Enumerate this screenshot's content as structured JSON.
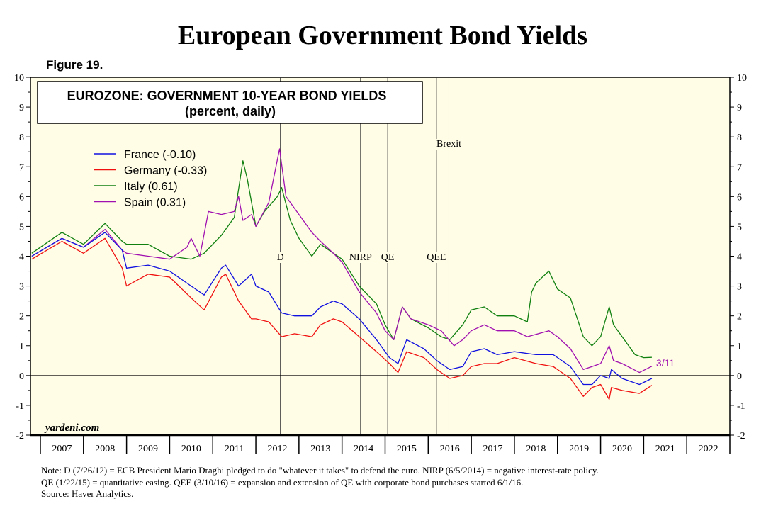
{
  "title": "European Government Bond Yields",
  "figure_label": "Figure 19.",
  "watermark": "yardeni.com",
  "notes": [
    "Note: D (7/26/12) = ECB President Mario Draghi pledged to do \"whatever it takes\" to defend the euro. NIRP (6/5/2014) = negative interest-rate policy.",
    "QE (1/22/15) = quantitative easing. QEE (3/10/16) = expansion and extension of QE with corporate bond purchases started 6/1/16.",
    "Source: Haver Analytics."
  ],
  "chart_data": {
    "type": "line",
    "title": "EUROZONE: GOVERNMENT 10-YEAR BOND YIELDS",
    "subtitle": "(percent, daily)",
    "xlim": [
      2006.77,
      2023.0
    ],
    "ylim": [
      -2,
      10
    ],
    "y_ticks": [
      "-2",
      "-1",
      "0",
      "1",
      "2",
      "3",
      "4",
      "5",
      "6",
      "7",
      "8",
      "9",
      "10"
    ],
    "x_tick_labels": [
      "2007",
      "2008",
      "2009",
      "2010",
      "2011",
      "2012",
      "2013",
      "2014",
      "2015",
      "2016",
      "2017",
      "2018",
      "2019",
      "2020",
      "2021",
      "2022"
    ],
    "grid": false,
    "background": "#fffde6",
    "legend_placement": "top-left",
    "end_label": "3/11",
    "events": [
      {
        "label": "D",
        "x": 2012.57
      },
      {
        "label": "NIRP",
        "x": 2014.43
      },
      {
        "label": "QE",
        "x": 2015.06
      },
      {
        "label": "QEE",
        "x": 2016.19
      },
      {
        "label": "Brexit",
        "x": 2016.48
      }
    ],
    "series": [
      {
        "name": "France (-0.10)",
        "color": "#1010e0",
        "x": [
          2006.8,
          2007.5,
          2008.0,
          2008.5,
          2008.9,
          2009.0,
          2009.5,
          2010.0,
          2010.5,
          2010.8,
          2011.2,
          2011.3,
          2011.6,
          2011.9,
          2012.0,
          2012.3,
          2012.6,
          2012.9,
          2013.3,
          2013.5,
          2013.8,
          2014.0,
          2014.4,
          2014.8,
          2015.1,
          2015.3,
          2015.5,
          2015.9,
          2016.2,
          2016.5,
          2016.8,
          2017.0,
          2017.3,
          2017.6,
          2018.0,
          2018.5,
          2018.9,
          2019.3,
          2019.6,
          2019.8,
          2020.0,
          2020.2,
          2020.25,
          2020.5,
          2020.9,
          2021.19
        ],
        "y": [
          4.0,
          4.6,
          4.3,
          4.8,
          4.2,
          3.6,
          3.7,
          3.5,
          3.0,
          2.7,
          3.6,
          3.7,
          3.0,
          3.4,
          3.0,
          2.8,
          2.1,
          2.0,
          2.0,
          2.3,
          2.5,
          2.4,
          1.9,
          1.2,
          0.6,
          0.4,
          1.2,
          0.9,
          0.5,
          0.2,
          0.3,
          0.8,
          0.9,
          0.7,
          0.8,
          0.7,
          0.7,
          0.3,
          -0.3,
          -0.3,
          0.0,
          -0.1,
          0.2,
          -0.1,
          -0.3,
          -0.1
        ]
      },
      {
        "name": "Germany (-0.33)",
        "color": "#f01010",
        "x": [
          2006.8,
          2007.5,
          2008.0,
          2008.5,
          2008.9,
          2009.0,
          2009.5,
          2010.0,
          2010.5,
          2010.8,
          2011.2,
          2011.3,
          2011.6,
          2011.9,
          2012.0,
          2012.3,
          2012.6,
          2012.9,
          2013.3,
          2013.5,
          2013.8,
          2014.0,
          2014.4,
          2014.8,
          2015.1,
          2015.3,
          2015.5,
          2015.9,
          2016.2,
          2016.5,
          2016.8,
          2017.0,
          2017.3,
          2017.6,
          2018.0,
          2018.5,
          2018.9,
          2019.3,
          2019.6,
          2019.8,
          2020.0,
          2020.2,
          2020.25,
          2020.5,
          2020.9,
          2021.19
        ],
        "y": [
          3.9,
          4.5,
          4.1,
          4.6,
          3.6,
          3.0,
          3.4,
          3.3,
          2.6,
          2.2,
          3.3,
          3.4,
          2.5,
          1.9,
          1.9,
          1.8,
          1.3,
          1.4,
          1.3,
          1.7,
          1.9,
          1.8,
          1.3,
          0.8,
          0.4,
          0.1,
          0.8,
          0.6,
          0.2,
          -0.1,
          0.0,
          0.3,
          0.4,
          0.4,
          0.6,
          0.4,
          0.3,
          -0.1,
          -0.7,
          -0.4,
          -0.3,
          -0.8,
          -0.4,
          -0.5,
          -0.6,
          -0.33
        ]
      },
      {
        "name": "Italy (0.61)",
        "color": "#108010",
        "x": [
          2006.8,
          2007.5,
          2008.0,
          2008.5,
          2008.9,
          2009.0,
          2009.5,
          2010.0,
          2010.5,
          2010.8,
          2011.2,
          2011.5,
          2011.7,
          2011.8,
          2012.0,
          2012.2,
          2012.5,
          2012.6,
          2012.8,
          2013.0,
          2013.3,
          2013.5,
          2013.8,
          2014.0,
          2014.4,
          2014.8,
          2015.0,
          2015.2,
          2015.4,
          2015.6,
          2016.0,
          2016.3,
          2016.5,
          2016.8,
          2017.0,
          2017.3,
          2017.6,
          2018.0,
          2018.3,
          2018.4,
          2018.5,
          2018.8,
          2019.0,
          2019.3,
          2019.6,
          2019.8,
          2020.0,
          2020.2,
          2020.3,
          2020.5,
          2020.8,
          2021.0,
          2021.19
        ],
        "y": [
          4.1,
          4.8,
          4.4,
          5.1,
          4.5,
          4.4,
          4.4,
          4.0,
          3.9,
          4.1,
          4.7,
          5.3,
          7.2,
          6.6,
          5.0,
          5.5,
          6.0,
          6.3,
          5.2,
          4.6,
          4.0,
          4.4,
          4.1,
          3.9,
          3.0,
          2.4,
          1.7,
          1.2,
          2.3,
          1.9,
          1.6,
          1.3,
          1.2,
          1.7,
          2.2,
          2.3,
          2.0,
          2.0,
          1.8,
          2.8,
          3.1,
          3.5,
          2.9,
          2.6,
          1.3,
          1.0,
          1.3,
          2.3,
          1.7,
          1.3,
          0.7,
          0.6,
          0.61
        ]
      },
      {
        "name": "Spain (0.31)",
        "color": "#a010b0",
        "x": [
          2006.8,
          2007.5,
          2008.0,
          2008.5,
          2008.9,
          2009.0,
          2009.5,
          2010.0,
          2010.4,
          2010.5,
          2010.7,
          2010.9,
          2011.2,
          2011.5,
          2011.6,
          2011.7,
          2011.9,
          2012.0,
          2012.3,
          2012.55,
          2012.7,
          2012.9,
          2013.3,
          2013.5,
          2013.8,
          2014.0,
          2014.4,
          2014.8,
          2015.0,
          2015.2,
          2015.4,
          2015.6,
          2016.0,
          2016.3,
          2016.6,
          2016.8,
          2017.0,
          2017.3,
          2017.6,
          2018.0,
          2018.3,
          2018.8,
          2019.0,
          2019.3,
          2019.6,
          2019.8,
          2020.0,
          2020.2,
          2020.3,
          2020.5,
          2020.9,
          2021.19
        ],
        "y": [
          4.0,
          4.6,
          4.3,
          4.9,
          4.2,
          4.1,
          4.0,
          3.9,
          4.3,
          4.6,
          4.0,
          5.5,
          5.4,
          5.5,
          6.0,
          5.2,
          5.4,
          5.0,
          5.8,
          7.6,
          6.0,
          5.6,
          4.8,
          4.5,
          4.1,
          3.8,
          2.8,
          2.1,
          1.5,
          1.2,
          2.3,
          1.9,
          1.7,
          1.5,
          1.0,
          1.2,
          1.5,
          1.7,
          1.5,
          1.5,
          1.3,
          1.5,
          1.3,
          0.9,
          0.2,
          0.3,
          0.4,
          1.0,
          0.5,
          0.4,
          0.1,
          0.31
        ]
      }
    ]
  }
}
